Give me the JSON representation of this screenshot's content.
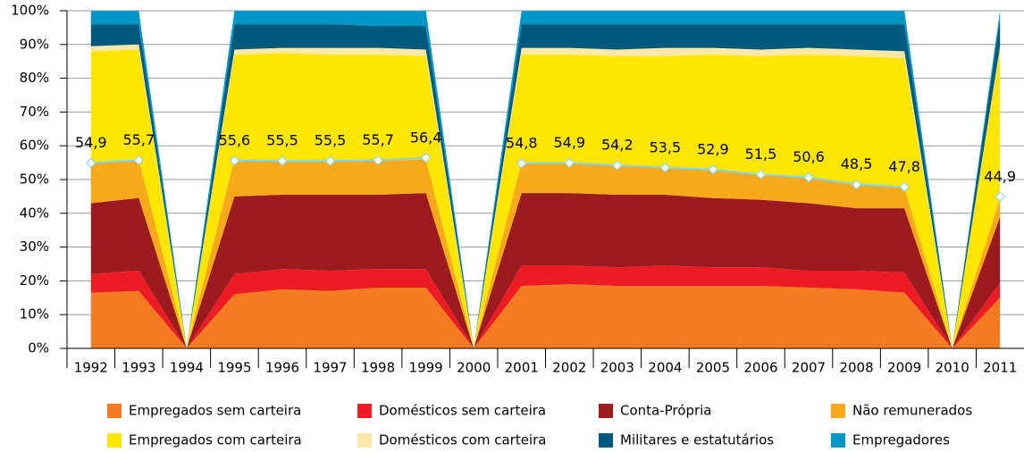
{
  "chart_data": {
    "type": "stacked-area",
    "categories": [
      "1992",
      "1993",
      "1994",
      "1995",
      "1996",
      "1997",
      "1998",
      "1999",
      "2000",
      "2001",
      "2002",
      "2003",
      "2004",
      "2005",
      "2006",
      "2007",
      "2008",
      "2009",
      "2010",
      "2011"
    ],
    "series": [
      {
        "name": "Empregados sem carteira",
        "color": "#f47b20",
        "values": [
          16.5,
          17,
          0,
          16,
          17.5,
          17,
          18,
          18,
          0,
          18.5,
          19,
          18.5,
          18.5,
          18.5,
          18.5,
          18,
          17.5,
          16.5,
          0,
          15
        ]
      },
      {
        "name": "Domésticos sem carteira",
        "color": "#ed1c24",
        "values": [
          5.5,
          6,
          0,
          6,
          6,
          6,
          5.5,
          5.5,
          0,
          6,
          5.5,
          5.5,
          6,
          5.5,
          5.5,
          5,
          5.5,
          6,
          0,
          4.5
        ]
      },
      {
        "name": "Conta-Própria",
        "color": "#9b1b1f",
        "values": [
          21,
          21.5,
          0,
          23,
          22,
          22.5,
          22,
          22.5,
          0,
          21.5,
          21.5,
          21.5,
          21,
          20.5,
          20,
          20,
          18.5,
          19,
          0,
          19.5
        ]
      },
      {
        "name": "Não remunerados",
        "color": "#f7a81b",
        "values": [
          12,
          11.5,
          0,
          11,
          10,
          10,
          10,
          10,
          0,
          9,
          9,
          8.5,
          8,
          8.5,
          7.5,
          7.5,
          7,
          6,
          0,
          5.5
        ]
      },
      {
        "name": "Empregados com carteira",
        "color": "#ffe600",
        "values": [
          33,
          32.5,
          0,
          31,
          32,
          31.5,
          31.5,
          30.5,
          0,
          32,
          32,
          32.5,
          33,
          34,
          35,
          36.5,
          38,
          38.5,
          0,
          44
        ]
      },
      {
        "name": "Domésticos com carteira",
        "color": "#fde8a8",
        "values": [
          1.5,
          1.5,
          0,
          1.5,
          1.5,
          2,
          2,
          2,
          0,
          2,
          2,
          2,
          2.5,
          2,
          2,
          2,
          2,
          2,
          0,
          1
        ]
      },
      {
        "name": "Militares e estatutários",
        "color": "#005a7e",
        "values": [
          6.5,
          6,
          0,
          7.5,
          7,
          7,
          6.5,
          7,
          0,
          7,
          7,
          7.5,
          7,
          7,
          7.5,
          7,
          7.5,
          8,
          0,
          8.5
        ]
      },
      {
        "name": "Empregadores",
        "color": "#0096c8",
        "values": [
          4,
          4,
          0,
          4,
          4,
          4,
          4.5,
          4.5,
          0,
          4,
          4,
          4,
          4,
          4,
          4,
          4,
          4,
          4,
          0,
          2
        ]
      }
    ],
    "line": {
      "color": "#7fd3f0",
      "values": [
        54.9,
        55.7,
        null,
        55.6,
        55.5,
        55.5,
        55.7,
        56.4,
        null,
        54.8,
        54.9,
        54.2,
        53.5,
        52.9,
        51.5,
        50.6,
        48.5,
        47.8,
        null,
        44.9
      ],
      "value_labels": [
        "54,9",
        "55,7",
        null,
        "55,6",
        "55,5",
        "55,5",
        "55,7",
        "56,4",
        null,
        "54,8",
        "54,9",
        "54,2",
        "53,5",
        "52,9",
        "51,5",
        "50,6",
        "48,5",
        "47,8",
        null,
        "44,9"
      ]
    },
    "ylim": [
      0,
      100
    ],
    "yticks": [
      {
        "value": 0,
        "label": "0%"
      },
      {
        "value": 10,
        "label": "10%"
      },
      {
        "value": 20,
        "label": "20%"
      },
      {
        "value": 30,
        "label": "30%"
      },
      {
        "value": 40,
        "label": "40%"
      },
      {
        "value": 50,
        "label": "50%"
      },
      {
        "value": 60,
        "label": "60%"
      },
      {
        "value": 70,
        "label": "70%"
      },
      {
        "value": 80,
        "label": "80%"
      },
      {
        "value": 90,
        "label": "90%"
      },
      {
        "value": 100,
        "label": "100%"
      }
    ],
    "grid": true
  }
}
